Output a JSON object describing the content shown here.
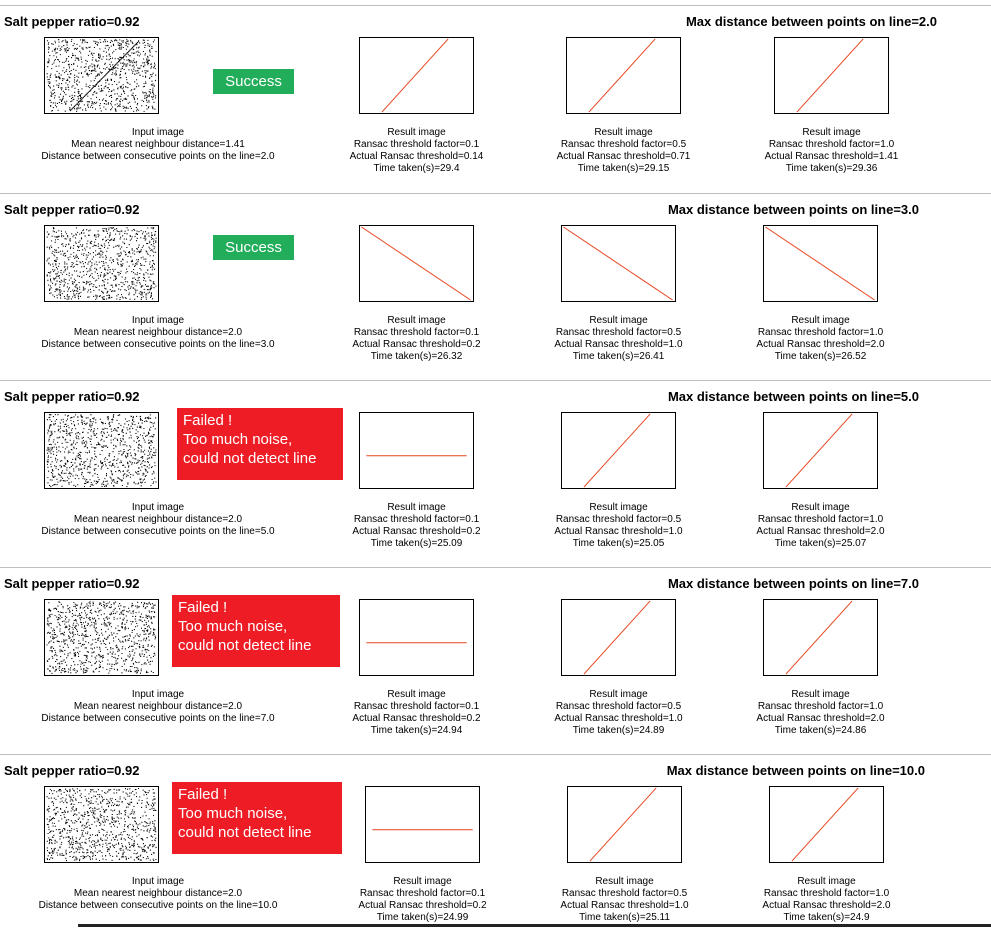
{
  "input_caption": "Input image",
  "result_caption": "Result image",
  "sections": [
    {
      "salt_pepper": "Salt pepper ratio=0.92",
      "max_distance": "Max distance between points on line=2.0",
      "input_lines": [
        "Input image",
        "Mean nearest neighbour distance=1.41",
        "Distance between consecutive points on the line=2.0"
      ],
      "status": "success",
      "status_lines": [
        "Success"
      ],
      "results": [
        {
          "lines": [
            "Result image",
            "Ransac threshold factor=0.1",
            "Actual Ransac threshold=0.14",
            "Time taken(s)=29.4"
          ],
          "line": "diag-up"
        },
        {
          "lines": [
            "Result image",
            "Ransac threshold factor=0.5",
            "Actual Ransac threshold=0.71",
            "Time taken(s)=29.15"
          ],
          "line": "diag-up"
        },
        {
          "lines": [
            "Result image",
            "Ransac threshold factor=1.0",
            "Actual Ransac threshold=1.41",
            "Time taken(s)=29.36"
          ],
          "line": "diag-up"
        }
      ]
    },
    {
      "salt_pepper": "Salt pepper ratio=0.92",
      "max_distance": "Max distance between points on line=3.0",
      "input_lines": [
        "Input image",
        "Mean nearest neighbour distance=2.0",
        "Distance between consecutive points on the line=3.0"
      ],
      "status": "success",
      "status_lines": [
        "Success"
      ],
      "results": [
        {
          "lines": [
            "Result image",
            "Ransac threshold factor=0.1",
            "Actual Ransac threshold=0.2",
            "Time taken(s)=26.32"
          ],
          "line": "diag-down"
        },
        {
          "lines": [
            "Result image",
            "Ransac threshold factor=0.5",
            "Actual Ransac threshold=1.0",
            "Time taken(s)=26.41"
          ],
          "line": "diag-down"
        },
        {
          "lines": [
            "Result image",
            "Ransac threshold factor=1.0",
            "Actual Ransac threshold=2.0",
            "Time taken(s)=26.52"
          ],
          "line": "diag-down"
        }
      ]
    },
    {
      "salt_pepper": "Salt pepper ratio=0.92",
      "max_distance": "Max distance between points on line=5.0",
      "input_lines": [
        "Input image",
        "Mean nearest neighbour distance=2.0",
        "Distance between consecutive points on the line=5.0"
      ],
      "status": "failed",
      "status_lines": [
        "Failed !",
        "Too much noise,",
        "could not detect line"
      ],
      "results": [
        {
          "lines": [
            "Result image",
            "Ransac threshold factor=0.1",
            "Actual Ransac threshold=0.2",
            "Time taken(s)=25.09"
          ],
          "line": "horizontal"
        },
        {
          "lines": [
            "Result image",
            "Ransac threshold factor=0.5",
            "Actual Ransac threshold=1.0",
            "Time taken(s)=25.05"
          ],
          "line": "diag-up"
        },
        {
          "lines": [
            "Result image",
            "Ransac threshold factor=1.0",
            "Actual Ransac threshold=2.0",
            "Time taken(s)=25.07"
          ],
          "line": "diag-up"
        }
      ]
    },
    {
      "salt_pepper": "Salt pepper ratio=0.92",
      "max_distance": "Max distance between points on line=7.0",
      "input_lines": [
        "Input image",
        "Mean nearest neighbour distance=2.0",
        "Distance between consecutive points on the line=7.0"
      ],
      "status": "failed",
      "status_lines": [
        "Failed !",
        "Too much noise,",
        "could not detect line"
      ],
      "results": [
        {
          "lines": [
            "Result image",
            "Ransac threshold factor=0.1",
            "Actual Ransac threshold=0.2",
            "Time taken(s)=24.94"
          ],
          "line": "horizontal"
        },
        {
          "lines": [
            "Result image",
            "Ransac threshold factor=0.5",
            "Actual Ransac threshold=1.0",
            "Time taken(s)=24.89"
          ],
          "line": "diag-up"
        },
        {
          "lines": [
            "Result image",
            "Ransac threshold factor=1.0",
            "Actual Ransac threshold=2.0",
            "Time taken(s)=24.86"
          ],
          "line": "diag-up"
        }
      ]
    },
    {
      "salt_pepper": "Salt pepper ratio=0.92",
      "max_distance": "Max distance between points on line=10.0",
      "input_lines": [
        "Input image",
        "Mean nearest neighbour distance=2.0",
        "Distance between consecutive points on the line=10.0"
      ],
      "status": "failed",
      "status_lines": [
        "Failed !",
        "Too much noise,",
        "could not detect line"
      ],
      "results": [
        {
          "lines": [
            "Result image",
            "Ransac threshold factor=0.1",
            "Actual Ransac threshold=0.2",
            "Time taken(s)=24.99"
          ],
          "line": "horizontal"
        },
        {
          "lines": [
            "Result image",
            "Ransac threshold factor=0.5",
            "Actual Ransac threshold=1.0",
            "Time taken(s)=25.11"
          ],
          "line": "diag-up"
        },
        {
          "lines": [
            "Result image",
            "Ransac threshold factor=1.0",
            "Actual Ransac threshold=2.0",
            "Time taken(s)=24.9"
          ],
          "line": "diag-up"
        }
      ]
    }
  ],
  "colors": {
    "success": "#22ad5a",
    "failed": "#ee1c25",
    "result_line": "#e8421c",
    "noise": "#000000"
  }
}
